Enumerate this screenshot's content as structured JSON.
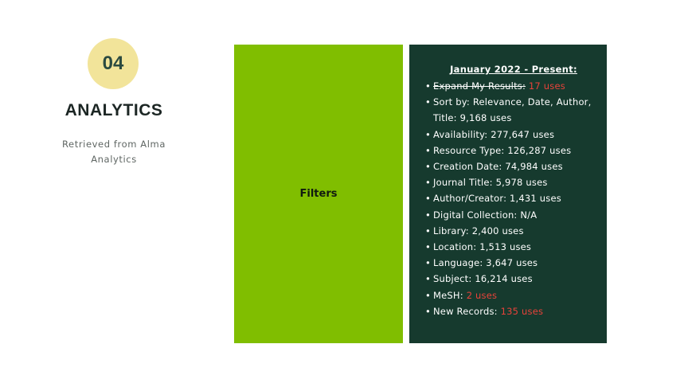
{
  "slide": {
    "number": "04",
    "title": "ANALYTICS",
    "subtitle": "Retrieved from Alma Analytics"
  },
  "filters_panel": {
    "label": "Filters",
    "color": "#80be00"
  },
  "stats_panel": {
    "heading": "January 2022 - Present:",
    "color": "#163a2e",
    "items": [
      {
        "label": "Expand My Results:",
        "value": "17 uses",
        "struck": true,
        "highlight": true
      },
      {
        "label": "Sort by: Relevance, Date, Author, Title:",
        "value": "9,168 uses",
        "struck": false,
        "highlight": false
      },
      {
        "label": "Availability:",
        "value": "277,647 uses",
        "struck": false,
        "highlight": false
      },
      {
        "label": "Resource Type:",
        "value": "126,287 uses",
        "struck": false,
        "highlight": false
      },
      {
        "label": "Creation Date:",
        "value": "74,984 uses",
        "struck": false,
        "highlight": false
      },
      {
        "label": "Journal Title:",
        "value": "5,978 uses",
        "struck": false,
        "highlight": false
      },
      {
        "label": "Author/Creator:",
        "value": "1,431 uses",
        "struck": false,
        "highlight": false
      },
      {
        "label": "Digital Collection:",
        "value": "N/A",
        "struck": false,
        "highlight": false
      },
      {
        "label": "Library:",
        "value": "2,400 uses",
        "struck": false,
        "highlight": false
      },
      {
        "label": "Location:",
        "value": "1,513 uses",
        "struck": false,
        "highlight": false
      },
      {
        "label": "Language:",
        "value": "3,647 uses",
        "struck": false,
        "highlight": false
      },
      {
        "label": "Subject:",
        "value": "16,214 uses",
        "struck": false,
        "highlight": false
      },
      {
        "label": "MeSH:",
        "value": "2 uses",
        "struck": false,
        "highlight": true
      },
      {
        "label": "New Records:",
        "value": "135 uses",
        "struck": false,
        "highlight": true
      }
    ]
  },
  "colors": {
    "badge": "#f2e49a",
    "highlight": "#e8423a"
  }
}
